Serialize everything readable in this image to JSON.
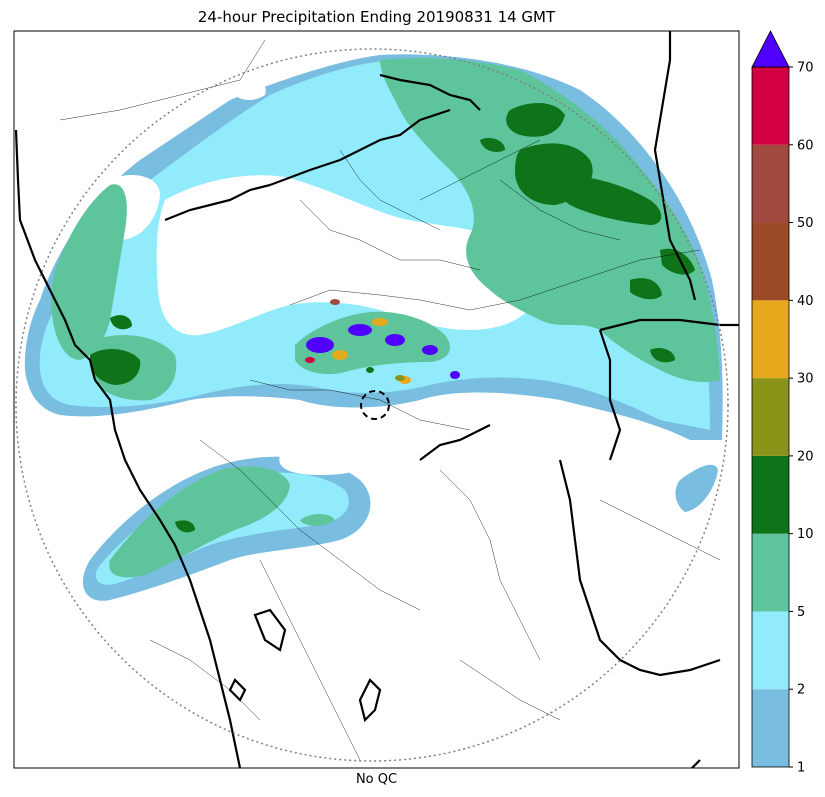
{
  "title": "24-hour Precipitation Ending 20190831 14 GMT",
  "xlabel": "No QC",
  "colorbar": {
    "ticks": [
      1,
      2,
      5,
      10,
      20,
      30,
      40,
      50,
      60,
      70
    ],
    "colors": [
      "#79bde1",
      "#92ebfb",
      "#5ec49b",
      "#0e7319",
      "#8a9418",
      "#e6a91c",
      "#9a4a26",
      "#a24a3f",
      "#d20040"
    ],
    "extend_color": "#5000ff"
  },
  "colors": {
    "radar_range_ring": "#808080",
    "borders": "#000000"
  }
}
